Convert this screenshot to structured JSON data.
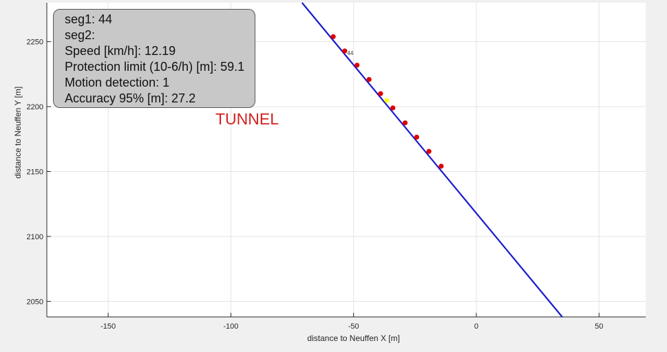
{
  "info_box": {
    "lines": [
      "seg1: 44",
      "seg2:",
      "Speed [km/h]: 12.19",
      "Protection limit (10-6/h) [m]: 59.1",
      "Motion detection: 1",
      "Accuracy 95% [m]: 27.2"
    ]
  },
  "annotation": "TUNNEL",
  "chart_data": {
    "type": "scatter",
    "title": "",
    "xlabel": "distance to Neuffen X [m]",
    "ylabel": "distance to Neuffen Y [m]",
    "xlim": [
      -175,
      69
    ],
    "ylim": [
      2038,
      2280
    ],
    "xticks": [
      -150,
      -100,
      -50,
      0,
      50
    ],
    "yticks": [
      2050,
      2100,
      2150,
      2200,
      2250
    ],
    "xtick_labels": [
      "-150",
      "-100",
      "-50",
      "0",
      "50"
    ],
    "ytick_labels": [
      "2050",
      "2100",
      "2150",
      "2200",
      "2250"
    ],
    "grid": true,
    "line": {
      "color": "#1a1acc",
      "x": [
        -71,
        35
      ],
      "y": [
        2280,
        2038
      ]
    },
    "points": {
      "color": "#e00000",
      "x": [
        -58.3,
        -53.6,
        -48.6,
        -43.7,
        -39.0,
        -34.0,
        -29.0,
        -24.3,
        -19.3,
        -14.3
      ],
      "y": [
        2253.9,
        2242.9,
        2231.9,
        2220.9,
        2210.0,
        2199.0,
        2187.5,
        2176.5,
        2165.5,
        2154.1
      ]
    },
    "current_point": {
      "color": "#ffff00",
      "x": -36.5,
      "y": 2204.7
    },
    "point_label": {
      "text": "44",
      "x": -52.6,
      "y": 2242.0
    }
  }
}
